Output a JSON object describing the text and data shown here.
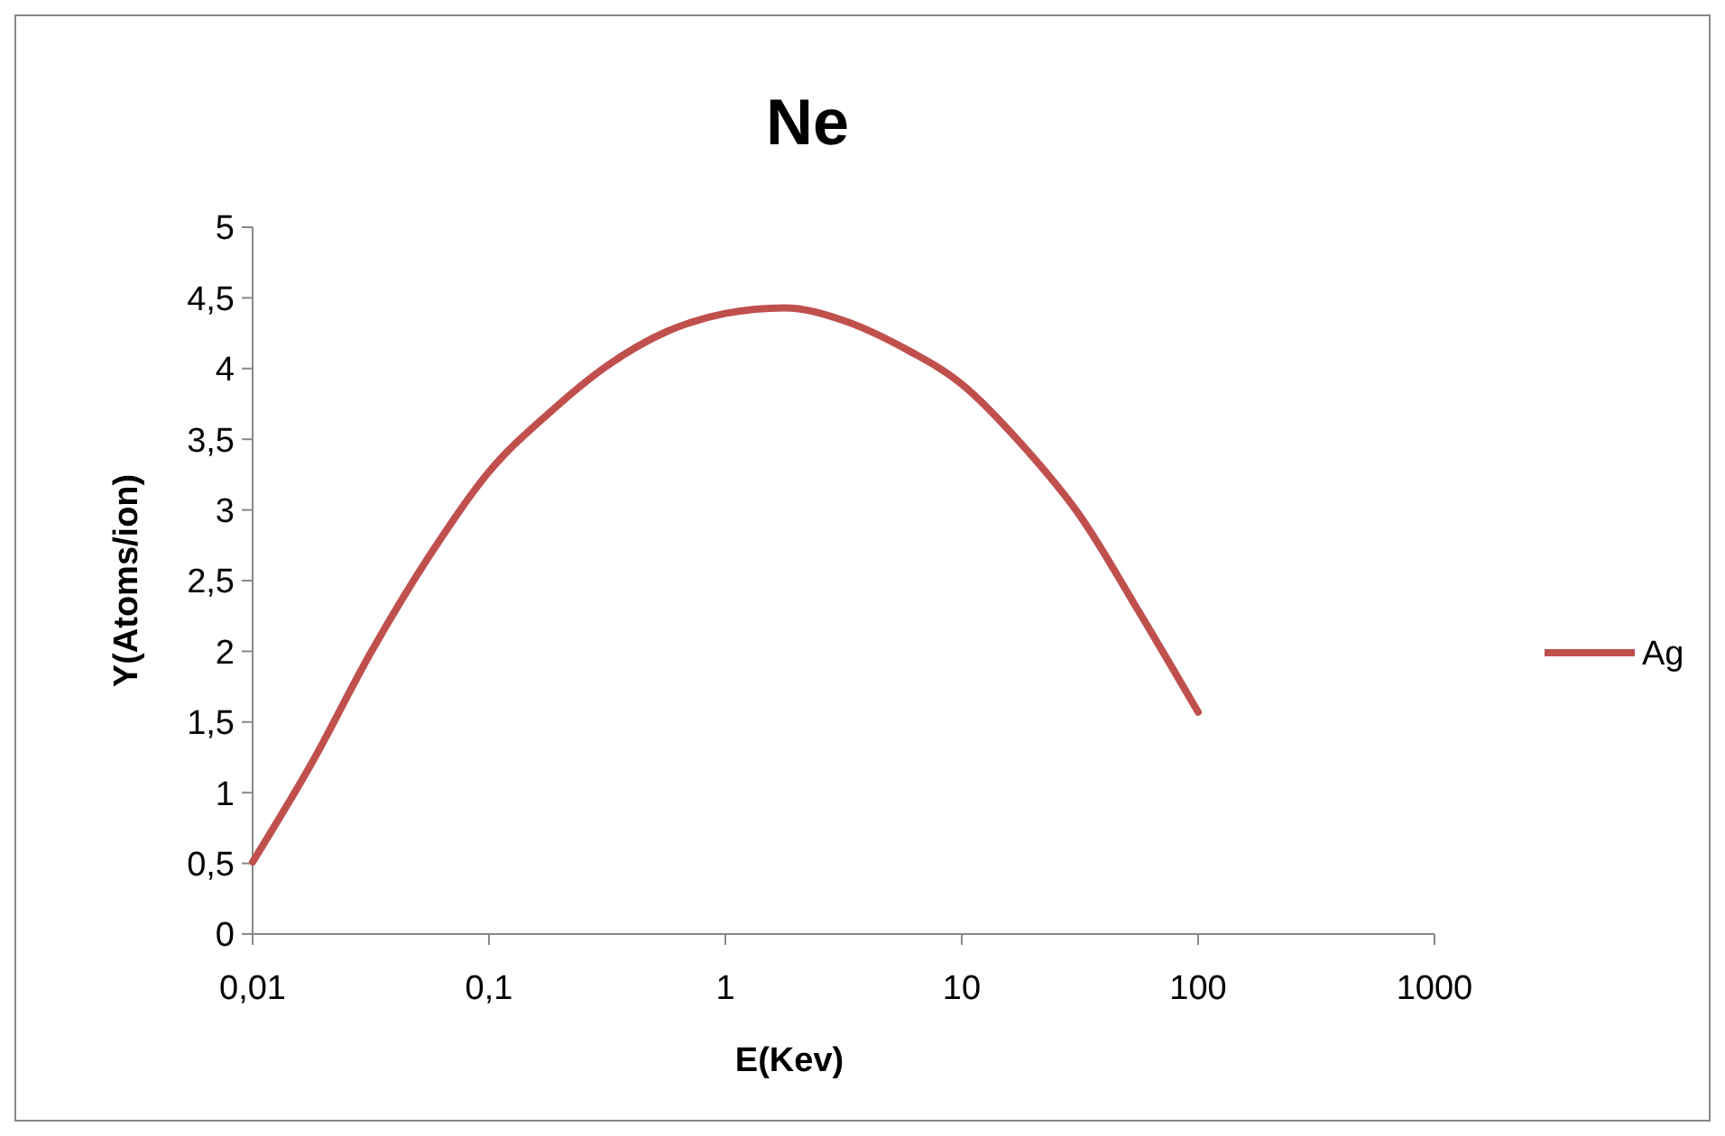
{
  "chart_data": {
    "type": "line",
    "title": "Ne",
    "xlabel": "E(Kev)",
    "ylabel": "Y(Atoms/ion)",
    "log": "x",
    "grid": false,
    "legend": "right",
    "marker": "none",
    "line_style": "solid",
    "xlim": [
      0.01,
      1000
    ],
    "xticks": [
      {
        "value": 0.01,
        "label": "0,01"
      },
      {
        "value": 0.1,
        "label": "0,1"
      },
      1,
      10,
      100,
      1000
    ],
    "ylim": [
      0,
      5
    ],
    "yticks": [
      0,
      {
        "value": 0.5,
        "label": "0,5"
      },
      1,
      {
        "value": 1.5,
        "label": "1,5"
      },
      2,
      {
        "value": 2.5,
        "label": "2,5"
      },
      3,
      {
        "value": 3.5,
        "label": "3,5"
      },
      4,
      {
        "value": 4.5,
        "label": "4,5"
      },
      5
    ],
    "series": [
      {
        "name": "Ag",
        "color": "#c0504d",
        "x": [
          0.01,
          0.0178,
          0.0316,
          0.0562,
          0.1,
          0.178,
          0.316,
          0.562,
          1,
          1.78,
          3.16,
          5.62,
          10,
          17.8,
          31.6,
          56.2,
          100
        ],
        "values": [
          0.51,
          1.21,
          1.99,
          2.68,
          3.27,
          3.68,
          4.02,
          4.26,
          4.39,
          4.43,
          4.34,
          4.15,
          3.89,
          3.47,
          2.96,
          2.28,
          1.57
        ]
      }
    ]
  }
}
